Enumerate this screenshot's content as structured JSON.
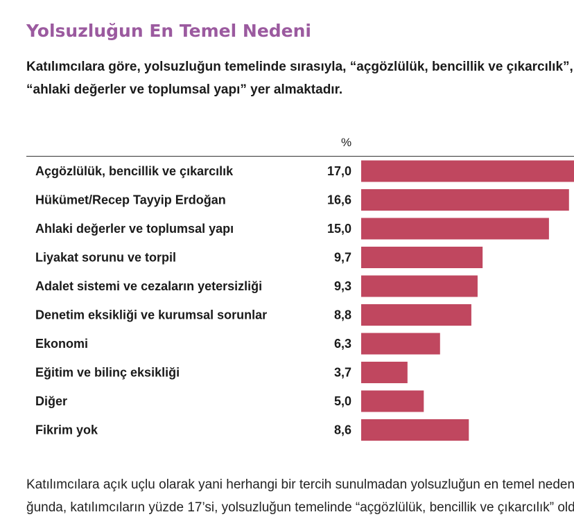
{
  "heading": "Yolsuzluğun En Temel Nedeni",
  "intro_lines": [
    "Katılımcılara göre, yolsuzluğun temelinde sırasıyla, “açgözlülük, bencillik ve çıkarcılık”, “Hükümet/Recep Tayyip Erdoğan” ve",
    "“ahlaki değerler ve toplumsal yapı” yer almaktadır."
  ],
  "footer_lines": [
    "Katılımcılara açık uçlu olarak yani herhangi bir tercih sunulmadan yolsuzluğun en temel nedeni sorul-",
    "ğunda, katılımcıların yüzde 17’si, yolsuzluğun temelinde “açgözlülük, bencillik ve çıkarcılık” olduğunu"
  ],
  "chart_data": {
    "type": "bar",
    "orientation": "horizontal",
    "unit_label": "%",
    "bar_color": "#c0475f",
    "xlim": [
      0,
      17.0
    ],
    "categories": [
      "Açgözlülük, bencillik ve çıkarcılık",
      "Hükümet/Recep Tayyip Erdoğan",
      "Ahlaki değerler ve toplumsal yapı",
      "Liyakat sorunu ve torpil",
      "Adalet sistemi ve cezaların yetersizliği",
      "Denetim eksikliği ve kurumsal sorunlar",
      "Ekonomi",
      "Eğitim ve bilinç eksikliği",
      "Diğer",
      "Fikrim yok"
    ],
    "values": [
      17.0,
      16.6,
      15.0,
      9.7,
      9.3,
      8.8,
      6.3,
      3.7,
      5.0,
      8.6
    ],
    "value_labels": [
      "17,0",
      "16,6",
      "15,0",
      "9,7",
      "9,3",
      "8,8",
      "6,3",
      "3,7",
      "5,0",
      "8,6"
    ]
  }
}
